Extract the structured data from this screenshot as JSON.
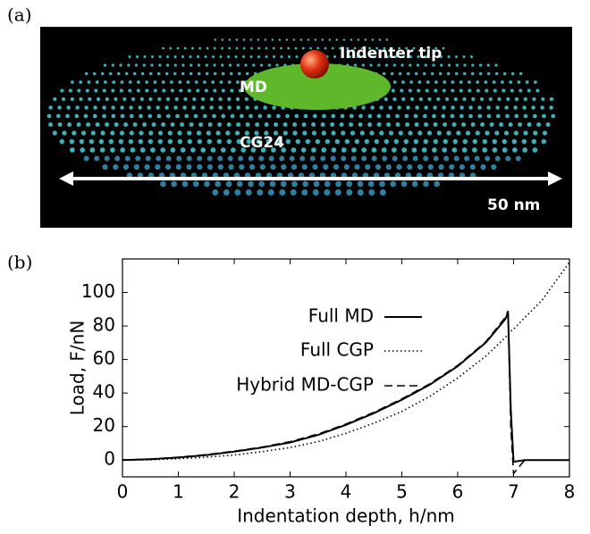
{
  "panel_a": {
    "label": "(a)",
    "annotations": [
      "Indenter tip",
      "MD",
      "CG24",
      "50 nm"
    ]
  },
  "chart_data": {
    "type": "line",
    "panel_label": "(b)",
    "x_label": "Indentation depth, h/nm",
    "y_label": "Load, F/nN",
    "x": [
      0,
      0.5,
      1,
      1.5,
      2,
      2.5,
      3,
      3.5,
      4,
      4.5,
      5,
      5.5,
      6,
      6.5,
      6.85,
      6.9,
      6.95,
      7,
      7.2,
      7.5,
      8
    ],
    "series": [
      {
        "name": "Full MD",
        "color": "#000000",
        "dash": "solid",
        "values": [
          0,
          0.5,
          1.5,
          3,
          5,
          7.5,
          10.5,
          15,
          21,
          28,
          36,
          45,
          56,
          70,
          84,
          88,
          30,
          -1,
          0,
          0,
          0
        ]
      },
      {
        "name": "Full CGP",
        "color": "#000000",
        "dash": "dotted",
        "values": [
          0,
          0.2,
          0.8,
          1.8,
          3,
          5,
          7.5,
          11,
          16,
          22,
          29,
          38,
          49,
          62,
          73,
          75,
          77,
          78,
          85,
          95,
          118
        ]
      },
      {
        "name": "Hybrid MD-CGP",
        "color": "#000000",
        "dash": "dashed",
        "values": [
          0,
          0.6,
          1.7,
          3.2,
          5.3,
          7.8,
          11,
          15.5,
          21.5,
          28.5,
          36.5,
          45.5,
          56.5,
          70.5,
          85,
          89,
          20,
          -8,
          0,
          0,
          0
        ]
      }
    ],
    "xlim": [
      0,
      8
    ],
    "xticks": [
      0,
      1,
      2,
      3,
      4,
      5,
      6,
      7,
      8
    ],
    "ylim": [
      -10,
      120
    ],
    "yticks": [
      0,
      20,
      40,
      60,
      80,
      100
    ],
    "grid": false,
    "legend": "upper left"
  }
}
